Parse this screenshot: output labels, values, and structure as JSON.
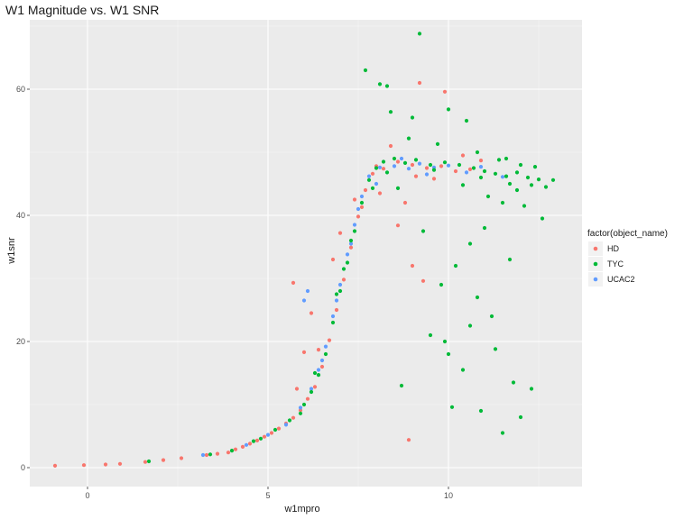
{
  "chart_data": {
    "type": "scatter",
    "title": "W1 Magnitude vs. W1 SNR",
    "xlabel": "w1mpro",
    "ylabel": "w1snr",
    "xlim": [
      -1.6,
      13.7
    ],
    "ylim": [
      -3,
      71
    ],
    "x_ticks": [
      0,
      5,
      10
    ],
    "y_ticks": [
      0,
      20,
      40,
      60
    ],
    "x_tick_labels": [
      "0",
      "5",
      "10"
    ],
    "y_tick_labels": [
      "0",
      "20",
      "40",
      "60"
    ],
    "grid": true,
    "background": "#ebebeb",
    "legend": {
      "title": "factor(object_name)",
      "position": "right"
    },
    "series": [
      {
        "name": "HD",
        "color": "#f8766d",
        "points": [
          [
            -0.9,
            0.3
          ],
          [
            -0.1,
            0.4
          ],
          [
            0.5,
            0.5
          ],
          [
            0.9,
            0.6
          ],
          [
            1.6,
            0.9
          ],
          [
            2.1,
            1.2
          ],
          [
            2.6,
            1.5
          ],
          [
            3.3,
            2.0
          ],
          [
            3.6,
            2.2
          ],
          [
            3.9,
            2.4
          ],
          [
            4.1,
            2.9
          ],
          [
            4.3,
            3.3
          ],
          [
            4.5,
            3.8
          ],
          [
            4.7,
            4.3
          ],
          [
            4.9,
            4.9
          ],
          [
            5.1,
            5.5
          ],
          [
            5.3,
            6.2
          ],
          [
            5.5,
            7.0
          ],
          [
            5.7,
            7.9
          ],
          [
            5.9,
            9.1
          ],
          [
            6.1,
            10.9
          ],
          [
            6.3,
            12.8
          ],
          [
            6.5,
            16.0
          ],
          [
            6.7,
            20.2
          ],
          [
            6.9,
            25.0
          ],
          [
            7.1,
            29.8
          ],
          [
            7.3,
            34.9
          ],
          [
            7.5,
            39.8
          ],
          [
            7.7,
            44.0
          ],
          [
            7.9,
            46.6
          ],
          [
            5.7,
            29.3
          ],
          [
            6.2,
            24.5
          ],
          [
            6.0,
            18.3
          ],
          [
            6.8,
            33.0
          ],
          [
            7.0,
            37.2
          ],
          [
            7.4,
            42.5
          ],
          [
            8.2,
            47.4
          ],
          [
            8.6,
            48.5
          ],
          [
            9.0,
            48.0
          ],
          [
            9.4,
            47.5
          ],
          [
            9.8,
            47.8
          ],
          [
            10.2,
            47.0
          ],
          [
            10.6,
            47.3
          ],
          [
            8.4,
            51.0
          ],
          [
            9.2,
            61.0
          ],
          [
            9.9,
            59.6
          ],
          [
            8.8,
            42.0
          ],
          [
            9.0,
            32.0
          ],
          [
            9.3,
            29.6
          ],
          [
            8.1,
            43.5
          ],
          [
            8.6,
            38.4
          ],
          [
            9.6,
            45.8
          ],
          [
            10.4,
            49.5
          ],
          [
            10.9,
            48.7
          ],
          [
            8.9,
            4.4
          ],
          [
            7.6,
            41.3
          ],
          [
            6.4,
            18.7
          ],
          [
            5.8,
            12.5
          ],
          [
            8.0,
            47.8
          ],
          [
            9.1,
            46.2
          ]
        ]
      },
      {
        "name": "TYC",
        "color": "#00ba38",
        "points": [
          [
            1.7,
            1.0
          ],
          [
            3.4,
            2.1
          ],
          [
            4.0,
            2.7
          ],
          [
            4.6,
            4.2
          ],
          [
            5.2,
            6.0
          ],
          [
            5.6,
            7.5
          ],
          [
            6.0,
            10.0
          ],
          [
            6.4,
            14.7
          ],
          [
            6.6,
            18.0
          ],
          [
            6.8,
            23.0
          ],
          [
            7.0,
            28.0
          ],
          [
            7.2,
            32.5
          ],
          [
            7.4,
            37.5
          ],
          [
            7.6,
            42.0
          ],
          [
            7.8,
            45.6
          ],
          [
            8.0,
            47.5
          ],
          [
            8.2,
            48.5
          ],
          [
            8.5,
            49.0
          ],
          [
            8.8,
            48.3
          ],
          [
            9.1,
            48.8
          ],
          [
            9.5,
            48.0
          ],
          [
            9.9,
            48.4
          ],
          [
            10.3,
            48.0
          ],
          [
            10.7,
            47.5
          ],
          [
            11.0,
            47.0
          ],
          [
            11.3,
            46.6
          ],
          [
            11.6,
            46.2
          ],
          [
            11.9,
            46.8
          ],
          [
            12.2,
            46.0
          ],
          [
            12.5,
            45.7
          ],
          [
            12.9,
            45.6
          ],
          [
            12.6,
            39.5
          ],
          [
            7.7,
            63.0
          ],
          [
            8.1,
            60.8
          ],
          [
            8.3,
            60.5
          ],
          [
            9.2,
            68.8
          ],
          [
            10.0,
            56.8
          ],
          [
            10.5,
            55.0
          ],
          [
            9.0,
            55.5
          ],
          [
            8.4,
            56.4
          ],
          [
            11.5,
            42.0
          ],
          [
            11.0,
            38.0
          ],
          [
            10.6,
            35.5
          ],
          [
            10.2,
            32.0
          ],
          [
            9.8,
            29.0
          ],
          [
            10.8,
            27.0
          ],
          [
            11.2,
            24.0
          ],
          [
            9.5,
            21.0
          ],
          [
            10.0,
            18.0
          ],
          [
            10.4,
            15.5
          ],
          [
            11.8,
            13.5
          ],
          [
            12.0,
            8.0
          ],
          [
            11.5,
            5.5
          ],
          [
            10.9,
            9.0
          ],
          [
            8.7,
            13.0
          ],
          [
            9.9,
            20.0
          ],
          [
            11.3,
            18.8
          ],
          [
            12.3,
            12.5
          ],
          [
            10.1,
            9.6
          ],
          [
            10.6,
            22.5
          ],
          [
            11.7,
            33.0
          ],
          [
            12.1,
            41.5
          ],
          [
            9.3,
            37.5
          ],
          [
            8.6,
            44.3
          ],
          [
            10.4,
            44.8
          ],
          [
            11.1,
            43.0
          ],
          [
            11.9,
            44.0
          ],
          [
            12.4,
            47.7
          ],
          [
            10.8,
            50.0
          ],
          [
            11.6,
            49.0
          ],
          [
            9.7,
            51.3
          ],
          [
            8.9,
            52.2
          ],
          [
            12.7,
            44.5
          ],
          [
            11.4,
            48.8
          ],
          [
            10.9,
            46.0
          ],
          [
            11.7,
            45.0
          ],
          [
            12.0,
            48.0
          ],
          [
            12.3,
            44.8
          ],
          [
            6.3,
            15.0
          ],
          [
            6.9,
            27.5
          ],
          [
            5.9,
            8.6
          ],
          [
            4.8,
            4.6
          ],
          [
            7.3,
            36.0
          ],
          [
            7.9,
            44.3
          ],
          [
            6.2,
            12.0
          ],
          [
            7.1,
            31.5
          ],
          [
            8.3,
            46.8
          ],
          [
            9.6,
            47.2
          ]
        ]
      },
      {
        "name": "UCAC2",
        "color": "#619cff",
        "points": [
          [
            3.2,
            2.0
          ],
          [
            4.4,
            3.6
          ],
          [
            5.0,
            5.2
          ],
          [
            5.5,
            6.8
          ],
          [
            5.9,
            9.5
          ],
          [
            6.2,
            12.5
          ],
          [
            6.4,
            15.5
          ],
          [
            6.6,
            19.2
          ],
          [
            6.8,
            24.0
          ],
          [
            7.0,
            29.0
          ],
          [
            7.2,
            33.8
          ],
          [
            7.4,
            38.5
          ],
          [
            7.6,
            43.0
          ],
          [
            7.8,
            46.2
          ],
          [
            8.1,
            47.6
          ],
          [
            8.5,
            47.8
          ],
          [
            8.9,
            47.4
          ],
          [
            9.2,
            48.2
          ],
          [
            9.6,
            47.6
          ],
          [
            10.0,
            47.9
          ],
          [
            10.5,
            46.8
          ],
          [
            10.9,
            47.7
          ],
          [
            6.1,
            28.0
          ],
          [
            6.0,
            26.5
          ],
          [
            7.5,
            41.0
          ],
          [
            8.7,
            49.0
          ],
          [
            9.4,
            46.5
          ],
          [
            11.5,
            46.1
          ],
          [
            6.5,
            17.0
          ],
          [
            7.3,
            35.5
          ],
          [
            6.9,
            26.5
          ],
          [
            8.0,
            45.0
          ]
        ]
      }
    ]
  }
}
